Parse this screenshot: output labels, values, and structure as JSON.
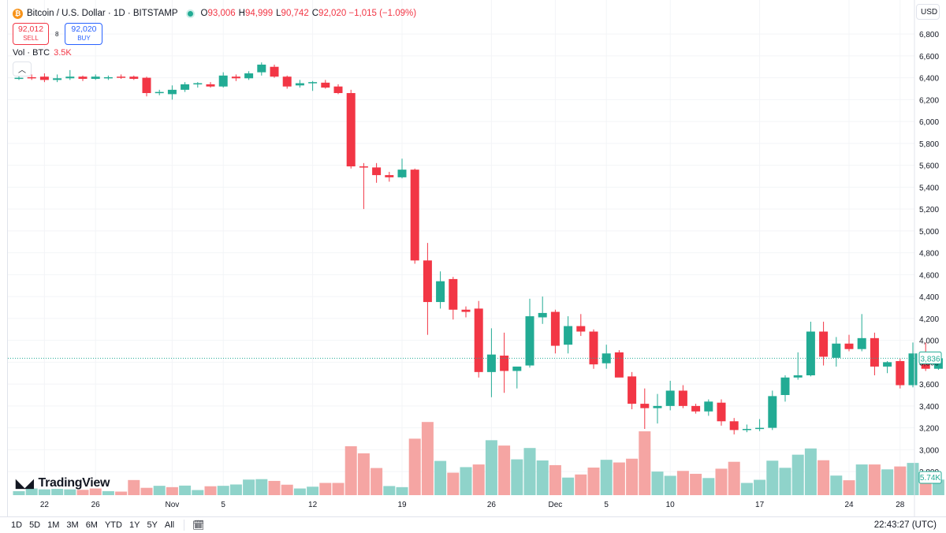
{
  "header": {
    "icon": "bitcoin-icon",
    "title": "Bitcoin / U.S. Dollar · 1D · BITSTAMP",
    "ohlc": [
      {
        "label": "O",
        "value": "93,006"
      },
      {
        "label": "H",
        "value": "94,999"
      },
      {
        "label": "L",
        "value": "90,742"
      },
      {
        "label": "C",
        "value": "92,020 −1,015 (−1.09%)"
      }
    ]
  },
  "trade": {
    "sell_price": "92,012",
    "sell_label": "SELL",
    "spread": "8",
    "buy_price": "92,020",
    "buy_label": "BUY"
  },
  "volume_legend": {
    "label": "Vol · BTC",
    "value": "3.5K"
  },
  "currency": "USD",
  "brand": "TradingView",
  "ranges": [
    "1D",
    "5D",
    "1M",
    "3M",
    "6M",
    "YTD",
    "1Y",
    "5Y",
    "All"
  ],
  "time": "22:43:27 (UTC)",
  "colors": {
    "up": "#22ab94",
    "down": "#f23645",
    "up_vol": "#8fd3ca",
    "down_vol": "#f5a5a3"
  },
  "chart_data": {
    "type": "candlestick",
    "title": "Bitcoin / U.S. Dollar · 1D · BITSTAMP",
    "ylim": [
      2700,
      6880
    ],
    "y_ticks": [
      "6,800",
      "6,600",
      "6,400",
      "6,200",
      "6,000",
      "5,800",
      "5,600",
      "5,400",
      "5,200",
      "5,000",
      "4,800",
      "4,600",
      "4,400",
      "4,200",
      "4,000",
      "3,800",
      "3,600",
      "3,400",
      "3,200",
      "3,000",
      "2,800"
    ],
    "y_tick_values": [
      6800,
      6600,
      6400,
      6200,
      6000,
      5800,
      5600,
      5400,
      5200,
      5000,
      4800,
      4600,
      4400,
      4200,
      4000,
      3800,
      3600,
      3400,
      3200,
      3000,
      2800
    ],
    "x_ticks": [
      {
        "label": "22",
        "index": 2
      },
      {
        "label": "26",
        "index": 6
      },
      {
        "label": "Nov",
        "index": 12
      },
      {
        "label": "5",
        "index": 16
      },
      {
        "label": "12",
        "index": 23
      },
      {
        "label": "19",
        "index": 30
      },
      {
        "label": "26",
        "index": 37
      },
      {
        "label": "Dec",
        "index": 42
      },
      {
        "label": "5",
        "index": 46
      },
      {
        "label": "10",
        "index": 51
      },
      {
        "label": "17",
        "index": 58
      },
      {
        "label": "24",
        "index": 65
      },
      {
        "label": "28",
        "index": 69
      }
    ],
    "last_price_label": "3,836",
    "last_price": 3836,
    "last_volume_label": "5.74K",
    "candles": [
      [
        6395,
        6420,
        6380,
        6400
      ],
      [
        6405,
        6430,
        6380,
        6400
      ],
      [
        6410,
        6440,
        6360,
        6380
      ],
      [
        6380,
        6430,
        6360,
        6395
      ],
      [
        6395,
        6470,
        6380,
        6410
      ],
      [
        6410,
        6420,
        6370,
        6390
      ],
      [
        6390,
        6430,
        6380,
        6410
      ],
      [
        6400,
        6420,
        6380,
        6405
      ],
      [
        6410,
        6430,
        6390,
        6400
      ],
      [
        6410,
        6420,
        6380,
        6390
      ],
      [
        6400,
        6410,
        6230,
        6260
      ],
      [
        6260,
        6290,
        6240,
        6270
      ],
      [
        6250,
        6330,
        6200,
        6290
      ],
      [
        6290,
        6360,
        6270,
        6340
      ],
      [
        6340,
        6360,
        6310,
        6350
      ],
      [
        6340,
        6360,
        6310,
        6320
      ],
      [
        6320,
        6450,
        6310,
        6420
      ],
      [
        6410,
        6430,
        6370,
        6395
      ],
      [
        6395,
        6460,
        6380,
        6440
      ],
      [
        6450,
        6540,
        6420,
        6520
      ],
      [
        6500,
        6520,
        6400,
        6410
      ],
      [
        6410,
        6420,
        6300,
        6320
      ],
      [
        6330,
        6380,
        6310,
        6350
      ],
      [
        6350,
        6370,
        6280,
        6360
      ],
      [
        6355,
        6380,
        6300,
        6310
      ],
      [
        6320,
        6340,
        6250,
        6260
      ],
      [
        6260,
        6290,
        5570,
        5590
      ],
      [
        5590,
        5620,
        5200,
        5580
      ],
      [
        5580,
        5620,
        5440,
        5510
      ],
      [
        5510,
        5540,
        5450,
        5490
      ],
      [
        5490,
        5660,
        5480,
        5560
      ],
      [
        5560,
        5570,
        4700,
        4730
      ],
      [
        4730,
        4890,
        4050,
        4350
      ],
      [
        4350,
        4630,
        4290,
        4540
      ],
      [
        4560,
        4580,
        4190,
        4280
      ],
      [
        4280,
        4310,
        4210,
        4260
      ],
      [
        4290,
        4360,
        3660,
        3710
      ],
      [
        3710,
        4110,
        3480,
        3870
      ],
      [
        3860,
        4070,
        3520,
        3720
      ],
      [
        3720,
        3750,
        3560,
        3760
      ],
      [
        3770,
        4380,
        3750,
        4220
      ],
      [
        4210,
        4400,
        4150,
        4250
      ],
      [
        4260,
        4280,
        3880,
        3950
      ],
      [
        3960,
        4220,
        3880,
        4130
      ],
      [
        4130,
        4240,
        4040,
        4080
      ],
      [
        4080,
        4100,
        3740,
        3780
      ],
      [
        3790,
        3960,
        3740,
        3880
      ],
      [
        3890,
        3910,
        3670,
        3660
      ],
      [
        3670,
        3710,
        3370,
        3420
      ],
      [
        3420,
        3560,
        3190,
        3380
      ],
      [
        3380,
        3510,
        3240,
        3400
      ],
      [
        3400,
        3630,
        3360,
        3540
      ],
      [
        3540,
        3590,
        3380,
        3400
      ],
      [
        3400,
        3420,
        3330,
        3350
      ],
      [
        3350,
        3460,
        3310,
        3440
      ],
      [
        3430,
        3460,
        3220,
        3260
      ],
      [
        3260,
        3290,
        3140,
        3180
      ],
      [
        3180,
        3230,
        3160,
        3190
      ],
      [
        3190,
        3280,
        3170,
        3200
      ],
      [
        3200,
        3540,
        3180,
        3490
      ],
      [
        3500,
        3680,
        3440,
        3660
      ],
      [
        3660,
        3890,
        3640,
        3680
      ],
      [
        3680,
        4170,
        3670,
        4080
      ],
      [
        4080,
        4170,
        3770,
        3850
      ],
      [
        3840,
        4030,
        3760,
        3970
      ],
      [
        3970,
        4050,
        3900,
        3920
      ],
      [
        3920,
        4240,
        3900,
        4020
      ],
      [
        4020,
        4070,
        3680,
        3760
      ],
      [
        3760,
        3810,
        3700,
        3800
      ],
      [
        3810,
        3830,
        3560,
        3590
      ],
      [
        3590,
        3980,
        3570,
        3880
      ],
      [
        3880,
        3980,
        3720,
        3740
      ],
      [
        3740,
        3880,
        3730,
        3836
      ]
    ],
    "volumes": [
      [
        0.18,
        "up"
      ],
      [
        0.3,
        "up"
      ],
      [
        0.26,
        "up"
      ],
      [
        0.28,
        "up"
      ],
      [
        0.26,
        "up"
      ],
      [
        0.24,
        "down"
      ],
      [
        0.3,
        "down"
      ],
      [
        0.18,
        "up"
      ],
      [
        0.16,
        "down"
      ],
      [
        0.68,
        "down"
      ],
      [
        0.33,
        "down"
      ],
      [
        0.42,
        "up"
      ],
      [
        0.36,
        "down"
      ],
      [
        0.43,
        "up"
      ],
      [
        0.23,
        "up"
      ],
      [
        0.4,
        "down"
      ],
      [
        0.42,
        "up"
      ],
      [
        0.48,
        "up"
      ],
      [
        0.7,
        "up"
      ],
      [
        0.72,
        "up"
      ],
      [
        0.64,
        "down"
      ],
      [
        0.47,
        "down"
      ],
      [
        0.3,
        "up"
      ],
      [
        0.38,
        "up"
      ],
      [
        0.55,
        "down"
      ],
      [
        0.55,
        "down"
      ],
      [
        2.2,
        "down"
      ],
      [
        1.88,
        "down"
      ],
      [
        1.22,
        "down"
      ],
      [
        0.41,
        "up"
      ],
      [
        0.36,
        "up"
      ],
      [
        2.54,
        "down"
      ],
      [
        3.29,
        "down"
      ],
      [
        1.54,
        "up"
      ],
      [
        1.01,
        "down"
      ],
      [
        1.26,
        "up"
      ],
      [
        1.38,
        "down"
      ],
      [
        2.47,
        "up"
      ],
      [
        2.23,
        "down"
      ],
      [
        1.61,
        "up"
      ],
      [
        2.12,
        "up"
      ],
      [
        1.56,
        "up"
      ],
      [
        1.35,
        "down"
      ],
      [
        0.79,
        "up"
      ],
      [
        0.93,
        "down"
      ],
      [
        1.24,
        "down"
      ],
      [
        1.59,
        "up"
      ],
      [
        1.47,
        "down"
      ],
      [
        1.64,
        "down"
      ],
      [
        2.87,
        "down"
      ],
      [
        1.06,
        "up"
      ],
      [
        0.87,
        "up"
      ],
      [
        1.09,
        "down"
      ],
      [
        0.96,
        "down"
      ],
      [
        0.77,
        "up"
      ],
      [
        1.19,
        "down"
      ],
      [
        1.5,
        "down"
      ],
      [
        0.55,
        "up"
      ],
      [
        0.69,
        "up"
      ],
      [
        1.55,
        "up"
      ],
      [
        1.23,
        "up"
      ],
      [
        1.82,
        "up"
      ],
      [
        2.1,
        "up"
      ],
      [
        1.57,
        "down"
      ],
      [
        0.88,
        "up"
      ],
      [
        0.67,
        "down"
      ],
      [
        1.38,
        "up"
      ],
      [
        1.38,
        "down"
      ],
      [
        1.16,
        "up"
      ],
      [
        1.29,
        "down"
      ],
      [
        1.45,
        "up"
      ],
      [
        0.86,
        "down"
      ],
      [
        0.7,
        "up"
      ]
    ],
    "volume_ylim": [
      0,
      3.9
    ]
  }
}
